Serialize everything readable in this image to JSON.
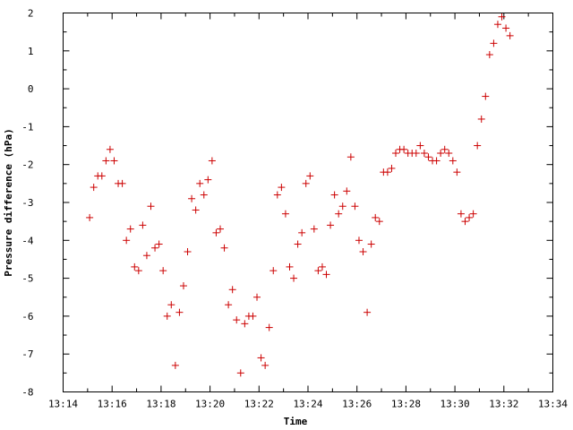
{
  "chart_data": {
    "type": "scatter",
    "title": "",
    "xlabel": "Time",
    "ylabel": "Pressure difference (hPa)",
    "xlim": [
      "13:14",
      "13:34"
    ],
    "ylim": [
      -8,
      2
    ],
    "x_tick_labels": [
      "13:14",
      "13:16",
      "13:18",
      "13:20",
      "13:22",
      "13:24",
      "13:26",
      "13:28",
      "13:30",
      "13:32",
      "13:34"
    ],
    "y_tick_labels": [
      "-8",
      "-7",
      "-6",
      "-5",
      "-4",
      "-3",
      "-2",
      "-1",
      "0",
      "1",
      "2"
    ],
    "marker": "plus",
    "color": "#cc0000",
    "grid": false,
    "legend": "none",
    "series": [
      {
        "x": [
          "13:15:05",
          "13:15:15",
          "13:15:25",
          "13:15:35",
          "13:15:45",
          "13:15:55",
          "13:16:05",
          "13:16:15",
          "13:16:25",
          "13:16:35",
          "13:16:45",
          "13:16:55",
          "13:17:05",
          "13:17:15",
          "13:17:25",
          "13:17:35",
          "13:17:45",
          "13:17:55",
          "13:18:05",
          "13:18:15",
          "13:18:25",
          "13:18:35",
          "13:18:45",
          "13:18:55",
          "13:19:05",
          "13:19:15",
          "13:19:25",
          "13:19:35",
          "13:19:45",
          "13:19:55",
          "13:20:05",
          "13:20:15",
          "13:20:25",
          "13:20:35",
          "13:20:45",
          "13:20:55",
          "13:21:05",
          "13:21:15",
          "13:21:25",
          "13:21:35",
          "13:21:45",
          "13:21:55",
          "13:22:05",
          "13:22:15",
          "13:22:25",
          "13:22:35",
          "13:22:45",
          "13:22:55",
          "13:23:05",
          "13:23:15",
          "13:23:25",
          "13:23:35",
          "13:23:45",
          "13:23:55",
          "13:24:05",
          "13:24:15",
          "13:24:25",
          "13:24:35",
          "13:24:45",
          "13:24:55",
          "13:25:05",
          "13:25:15",
          "13:25:25",
          "13:25:35",
          "13:25:45",
          "13:25:55",
          "13:26:05",
          "13:26:15",
          "13:26:25",
          "13:26:35",
          "13:26:45",
          "13:26:55",
          "13:27:05",
          "13:27:15",
          "13:27:25",
          "13:27:35",
          "13:27:45",
          "13:27:55",
          "13:28:05",
          "13:28:15",
          "13:28:25",
          "13:28:35",
          "13:28:45",
          "13:28:55",
          "13:29:05",
          "13:29:15",
          "13:29:25",
          "13:29:35",
          "13:29:45",
          "13:29:55",
          "13:30:05",
          "13:30:15",
          "13:30:25",
          "13:30:35",
          "13:30:45",
          "13:30:55",
          "13:31:05",
          "13:31:15",
          "13:31:25",
          "13:31:35",
          "13:31:45",
          "13:31:55",
          "13:32:05",
          "13:32:15"
        ],
        "y": [
          -3.4,
          -2.6,
          -2.3,
          -2.3,
          -1.9,
          -1.6,
          -1.9,
          -2.5,
          -2.5,
          -4.0,
          -3.7,
          -4.7,
          -4.8,
          -3.6,
          -4.4,
          -3.1,
          -4.2,
          -4.1,
          -4.8,
          -6.0,
          -5.7,
          -7.3,
          -5.9,
          -5.2,
          -4.3,
          -2.9,
          -3.2,
          -2.5,
          -2.8,
          -2.4,
          -1.9,
          -3.8,
          -3.7,
          -4.2,
          -5.7,
          -5.3,
          -6.1,
          -7.5,
          -6.2,
          -6.0,
          -6.0,
          -5.5,
          -7.1,
          -7.3,
          -6.3,
          -4.8,
          -2.8,
          -2.6,
          -3.3,
          -4.7,
          -5.0,
          -4.1,
          -3.8,
          -2.5,
          -2.3,
          -3.7,
          -4.8,
          -4.7,
          -4.9,
          -3.6,
          -2.8,
          -3.3,
          -3.1,
          -2.7,
          -1.8,
          -3.1,
          -4.0,
          -4.3,
          -5.9,
          -4.1,
          -3.4,
          -3.5,
          -2.2,
          -2.2,
          -2.1,
          -1.7,
          -1.6,
          -1.6,
          -1.7,
          -1.7,
          -1.7,
          -1.5,
          -1.7,
          -1.8,
          -1.9,
          -1.9,
          -1.7,
          -1.6,
          -1.7,
          -1.9,
          -2.2,
          -3.3,
          -3.5,
          -3.4,
          -3.3,
          -1.5,
          -0.8,
          -0.2,
          0.9,
          1.2,
          1.7,
          1.9,
          1.6,
          1.4
        ]
      }
    ]
  }
}
